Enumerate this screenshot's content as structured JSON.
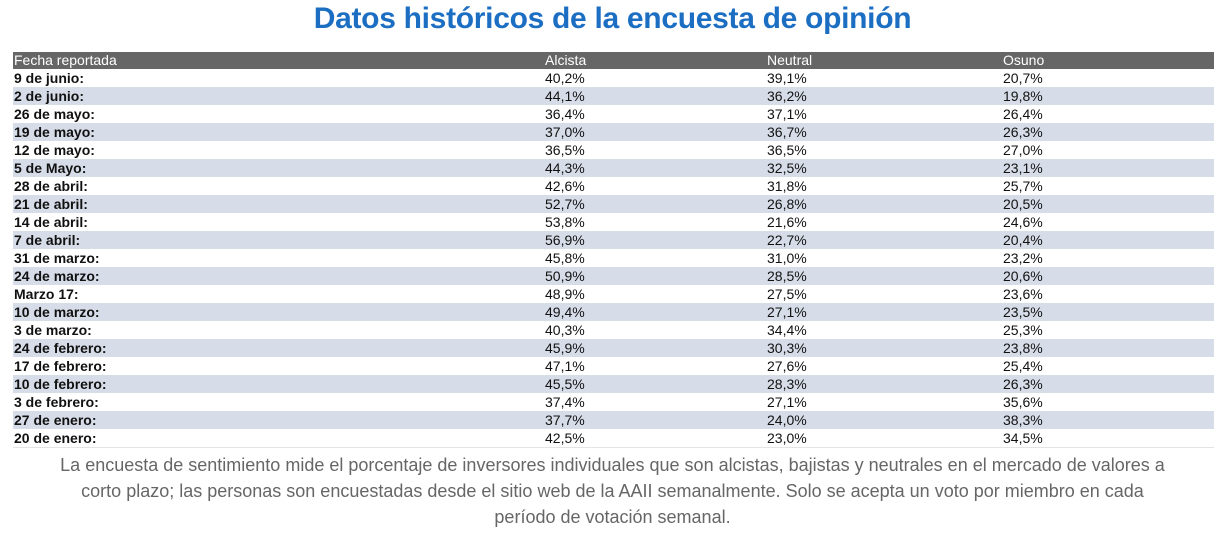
{
  "title": "Datos históricos de la encuesta de opinión",
  "table": {
    "headers": [
      "Fecha reportada",
      "Alcista",
      "Neutral",
      "Osuno"
    ],
    "rows": [
      [
        "9 de junio:",
        "40,2%",
        "39,1%",
        "20,7%"
      ],
      [
        "2 de junio:",
        "44,1%",
        "36,2%",
        "19,8%"
      ],
      [
        "26 de mayo:",
        "36,4%",
        "37,1%",
        "26,4%"
      ],
      [
        "19 de mayo:",
        "37,0%",
        "36,7%",
        "26,3%"
      ],
      [
        "12 de mayo:",
        "36,5%",
        "36,5%",
        "27,0%"
      ],
      [
        "5 de Mayo:",
        "44,3%",
        "32,5%",
        "23,1%"
      ],
      [
        "28 de abril:",
        "42,6%",
        "31,8%",
        "25,7%"
      ],
      [
        "21 de abril:",
        "52,7%",
        "26,8%",
        "20,5%"
      ],
      [
        "14 de abril:",
        "53,8%",
        "21,6%",
        "24,6%"
      ],
      [
        "7 de abril:",
        "56,9%",
        "22,7%",
        "20,4%"
      ],
      [
        "31 de marzo:",
        "45,8%",
        "31,0%",
        "23,2%"
      ],
      [
        "24 de marzo:",
        "50,9%",
        "28,5%",
        "20,6%"
      ],
      [
        "Marzo 17:",
        "48,9%",
        "27,5%",
        "23,6%"
      ],
      [
        "10 de marzo:",
        "49,4%",
        "27,1%",
        "23,5%"
      ],
      [
        "3 de marzo:",
        "40,3%",
        "34,4%",
        "25,3%"
      ],
      [
        "24 de febrero:",
        "45,9%",
        "30,3%",
        "23,8%"
      ],
      [
        "17 de febrero:",
        "47,1%",
        "27,6%",
        "25,4%"
      ],
      [
        "10 de febrero:",
        "45,5%",
        "28,3%",
        "26,3%"
      ],
      [
        "3 de febrero:",
        "37,4%",
        "27,1%",
        "35,6%"
      ],
      [
        "27 de enero:",
        "37,7%",
        "24,0%",
        "38,3%"
      ],
      [
        "20 de enero:",
        "42,5%",
        "23,0%",
        "34,5%"
      ]
    ]
  },
  "caption": "La encuesta de sentimiento mide el porcentaje de inversores individuales que son alcistas, bajistas y neutrales en el mercado de valores a corto plazo; las personas son encuestadas desde el sitio web de la AAII semanalmente. Solo se acepta un voto por miembro en cada período de votación semanal.",
  "colors": {
    "title": "#1b6ec2",
    "header_bg": "#666666",
    "alt_row": "#d7dde8"
  }
}
